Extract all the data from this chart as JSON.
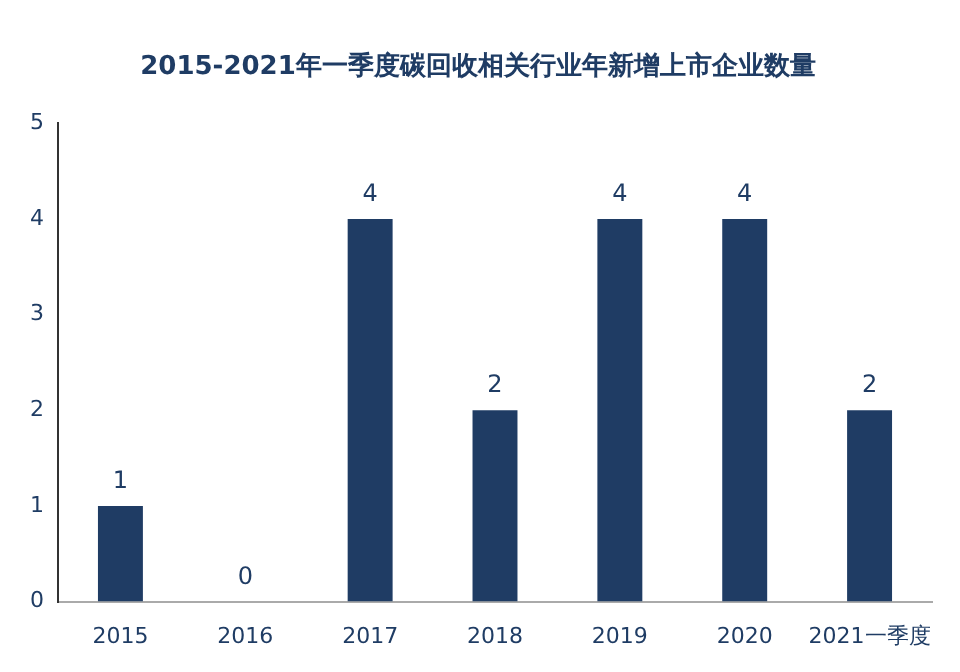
{
  "chart_data": {
    "type": "bar",
    "title": "2015-2021年一季度碳回收相关行业年新增上市企业数量",
    "categories": [
      "2015",
      "2016",
      "2017",
      "2018",
      "2019",
      "2020",
      "2021一季度"
    ],
    "values": [
      1,
      0,
      4,
      2,
      4,
      4,
      2
    ],
    "color": "#1f3c64",
    "ylim": [
      0,
      5
    ],
    "yticks": [
      0,
      1,
      2,
      3,
      4,
      5
    ],
    "grid": false,
    "legend": false,
    "data_labels": true
  }
}
